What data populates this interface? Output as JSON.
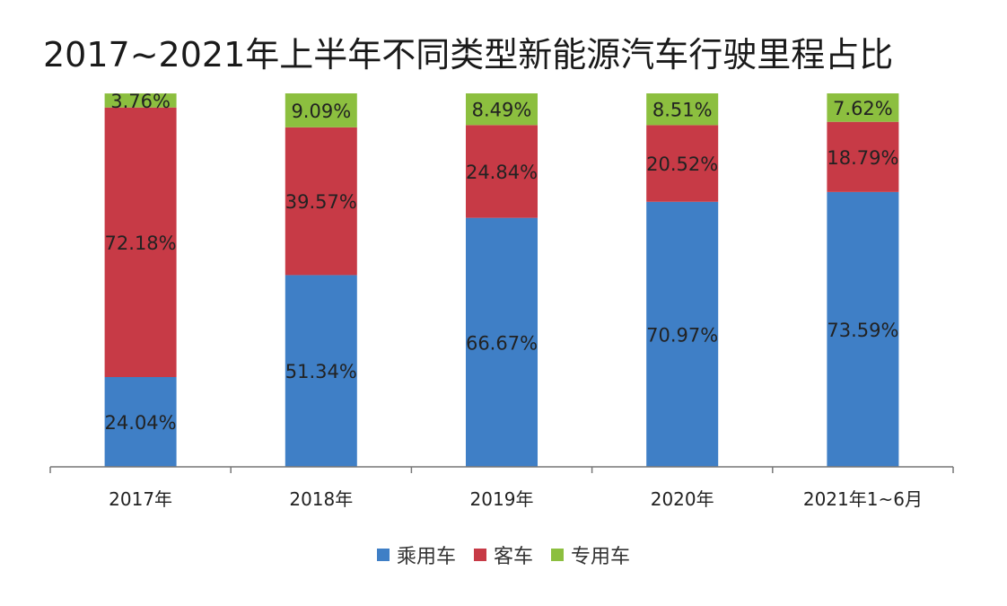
{
  "chart_data": {
    "type": "bar",
    "stacked": true,
    "title": "2017~2021年上半年不同类型新能源汽车行驶里程占比",
    "categories": [
      "2017年",
      "2018年",
      "2019年",
      "2020年",
      "2021年1~6月"
    ],
    "series": [
      {
        "name": "乘用车",
        "color": "#3f7fc6",
        "values": [
          24.04,
          51.34,
          66.67,
          70.97,
          73.59
        ]
      },
      {
        "name": "客车",
        "color": "#c73a46",
        "values": [
          72.18,
          39.57,
          24.84,
          20.52,
          18.79
        ]
      },
      {
        "name": "专用车",
        "color": "#8cbf3f",
        "values": [
          3.76,
          9.09,
          8.49,
          8.51,
          7.62
        ]
      }
    ],
    "ylim": [
      0,
      100
    ],
    "value_suffix": "%",
    "legend_position": "bottom",
    "grid": false
  }
}
